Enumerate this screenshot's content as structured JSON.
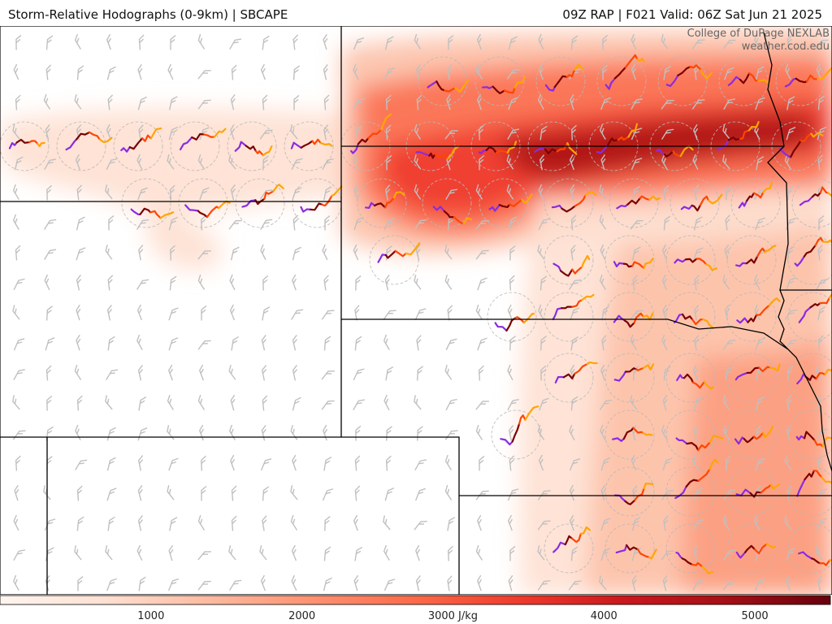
{
  "header": {
    "title_left": "Storm-Relative Hodographs (0-9km) | SBCAPE",
    "title_right": "09Z RAP | F021 Valid: 06Z Sat Jun 21 2025"
  },
  "credit": {
    "line1": "College of DuPage NEXLAB",
    "line2": "weather.cod.edu"
  },
  "colorbar": {
    "ticks": [
      "1000",
      "2000",
      "3000 J/kg",
      "4000",
      "5000"
    ],
    "tick_values": [
      1000,
      2000,
      3000,
      4000,
      5000
    ],
    "range": [
      0,
      5500
    ],
    "colors": [
      "#fff5f0",
      "#fee0d2",
      "#fcbba1",
      "#fc9272",
      "#fb6a4a",
      "#ef3b2c",
      "#cb181d",
      "#a50f15",
      "#67000d"
    ]
  },
  "hodograph_colors": [
    "#8a2be2",
    "#7a0000",
    "#ff4500",
    "#ffa500"
  ],
  "map_colors": {
    "border": "#000000",
    "barb": "#c0c0c0",
    "ring": "#b8b8b8"
  }
}
